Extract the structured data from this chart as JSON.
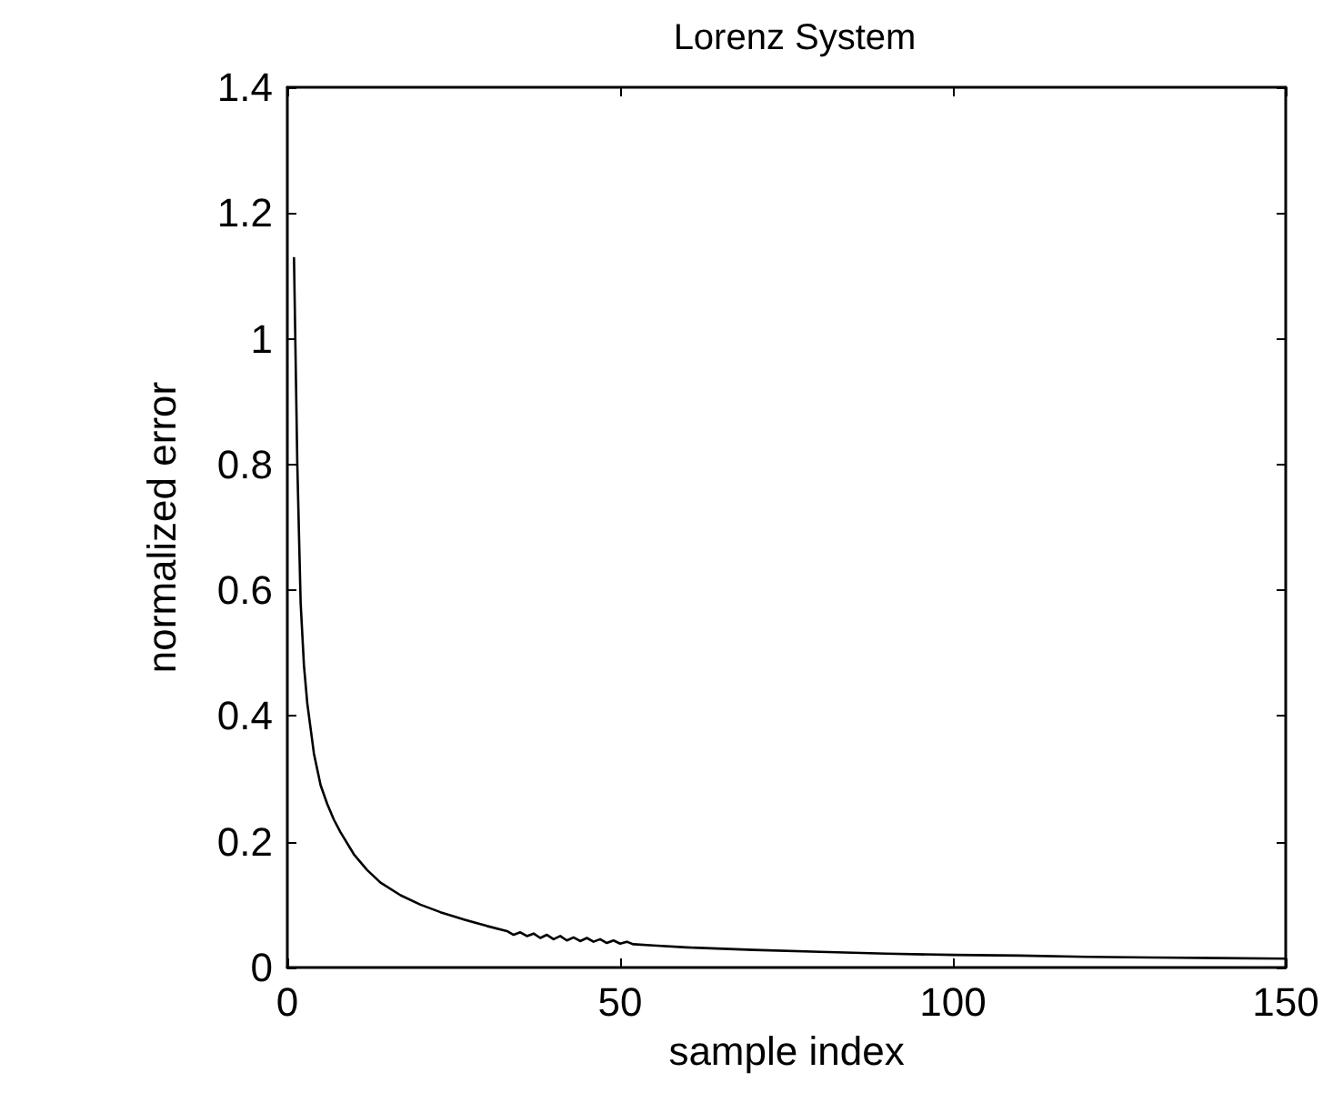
{
  "chart_data": {
    "type": "line",
    "title": "Lorenz System",
    "xlabel": "sample index",
    "ylabel": "normalized error",
    "x": [
      1,
      1.5,
      2,
      2.5,
      3,
      4,
      5,
      6,
      7,
      8,
      10,
      12,
      14,
      17,
      20,
      23,
      26,
      30,
      33,
      34,
      35,
      36,
      37,
      38,
      39,
      40,
      41,
      42,
      43,
      44,
      45,
      46,
      47,
      48,
      49,
      50,
      51,
      52,
      55,
      60,
      70,
      80,
      90,
      100,
      110,
      120,
      130,
      140,
      150
    ],
    "series": [
      {
        "color": "#000000",
        "values": [
          1.13,
          0.8,
          0.58,
          0.48,
          0.42,
          0.34,
          0.29,
          0.26,
          0.235,
          0.215,
          0.18,
          0.155,
          0.135,
          0.115,
          0.1,
          0.088,
          0.078,
          0.066,
          0.058,
          0.052,
          0.056,
          0.05,
          0.054,
          0.047,
          0.052,
          0.045,
          0.05,
          0.043,
          0.048,
          0.042,
          0.047,
          0.041,
          0.045,
          0.039,
          0.043,
          0.038,
          0.041,
          0.037,
          0.035,
          0.032,
          0.028,
          0.025,
          0.022,
          0.02,
          0.019,
          0.017,
          0.016,
          0.015,
          0.014
        ]
      }
    ],
    "xlim": [
      0,
      150
    ],
    "xticks": [
      0,
      50,
      100,
      150
    ],
    "ylim": [
      0,
      1.4
    ],
    "yticks": [
      0,
      0.2,
      0.4,
      0.6,
      0.8,
      1,
      1.2,
      1.4
    ],
    "grid": false,
    "marker": "none",
    "line_style": "solid"
  }
}
